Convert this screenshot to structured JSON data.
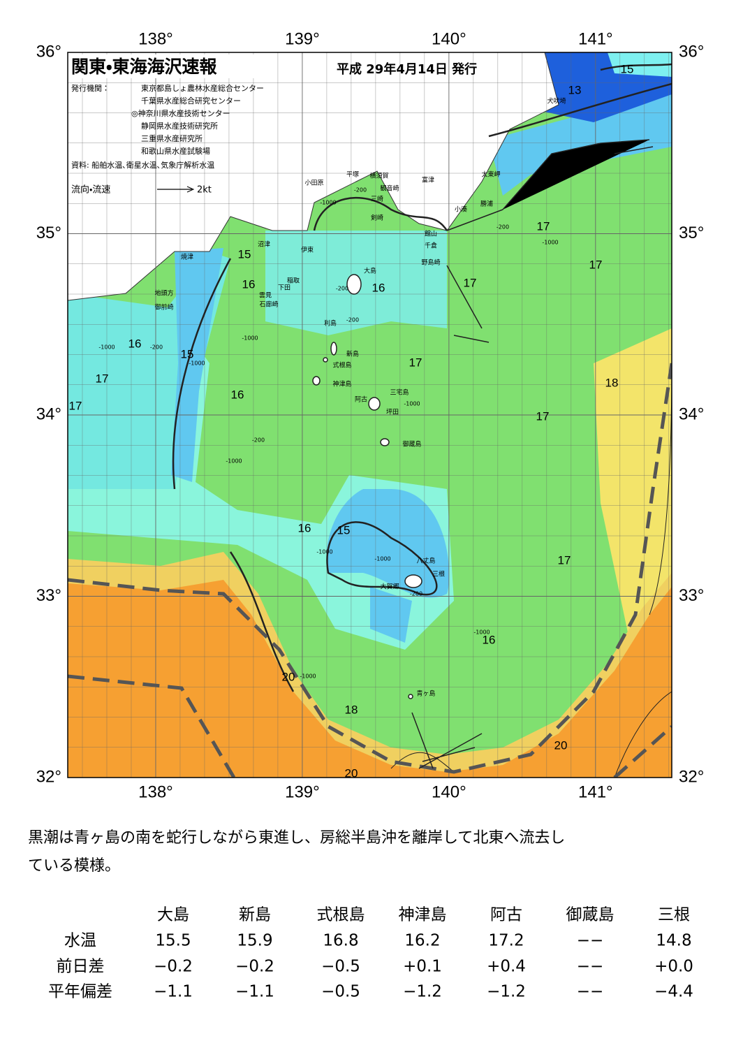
{
  "header": {
    "title": "関東・東海海沢速報",
    "date": "平成 29年4月14日 発行"
  },
  "agencies": {
    "label": "発行機関：",
    "names": [
      "東京都島しょ農林水産総合センター",
      "千葉県水産総合研究センター",
      "◎神奈川県水産技術センター",
      "静岡県水産技術研究所",
      "三重県水産研究所",
      "和歌山県水産試験場"
    ]
  },
  "source": "資料: 船舶水温､衛星水温､気象庁解析水温",
  "legend": {
    "label": "流向・流速",
    "scale": "2kt"
  },
  "map": {
    "lon_ticks": [
      {
        "value": 138,
        "label": "138°"
      },
      {
        "value": 139,
        "label": "139°"
      },
      {
        "value": 140,
        "label": "140°"
      },
      {
        "value": 141,
        "label": "141°"
      }
    ],
    "lat_ticks": [
      {
        "value": 36,
        "label": "36°"
      },
      {
        "value": 35,
        "label": "35°"
      },
      {
        "value": 34,
        "label": "34°"
      },
      {
        "value": 33,
        "label": "33°"
      },
      {
        "value": 32,
        "label": "32°"
      }
    ],
    "places": [
      "犬吠埼",
      "太東岬",
      "勝浦",
      "小湊",
      "富津",
      "館山",
      "千倉",
      "野島崎",
      "横須賀",
      "観音崎",
      "平塚",
      "三崎",
      "剣崎",
      "小田原",
      "沼津",
      "伊東",
      "焼津",
      "稲取",
      "下田",
      "雲見",
      "石廊崎",
      "地頭方",
      "御前崎",
      "大島",
      "利島",
      "新島",
      "式根島",
      "神津島",
      "三宅島",
      "阿古",
      "坪田",
      "御蔵島",
      "八丈島",
      "三根",
      "大賀郷",
      "青ヶ島"
    ],
    "isotherm_labels": [
      "15",
      "13",
      "17",
      "17",
      "17",
      "15",
      "16",
      "16",
      "16",
      "15",
      "17",
      "17",
      "16",
      "17",
      "18",
      "17",
      "16",
      "15",
      "17",
      "16",
      "20",
      "18",
      "20",
      "20"
    ],
    "depth_labels": [
      "-200",
      "-1000",
      "-200",
      "-1000",
      "-1000",
      "-200",
      "-1000",
      "-200",
      "-200",
      "-1000",
      "-200",
      "-1000",
      "-1000",
      "-1000",
      "-1000",
      "-200",
      "-1000",
      "-1000"
    ]
  },
  "summary": [
    "黒潮は青ヶ島の南を蛇行しながら東進し、房総半島沖を離岸して北東へ流去し",
    "ている模様。"
  ],
  "table": {
    "columns": [
      "大島",
      "新島",
      "式根島",
      "神津島",
      "阿古",
      "御蔵島",
      "三根"
    ],
    "rows": [
      {
        "label": "水温",
        "cells": [
          "15.5",
          "15.9",
          "16.8",
          "16.2",
          "17.2",
          "−−",
          "14.8"
        ]
      },
      {
        "label": "前日差",
        "cells": [
          "−0.2",
          "−0.2",
          "−0.5",
          "+0.1",
          "+0.4",
          "−−",
          "+0.0"
        ]
      },
      {
        "label": "平年偏差",
        "cells": [
          "−1.1",
          "−1.1",
          "−0.5",
          "−1.2",
          "−1.2",
          "−−",
          "−4.4"
        ]
      }
    ]
  }
}
